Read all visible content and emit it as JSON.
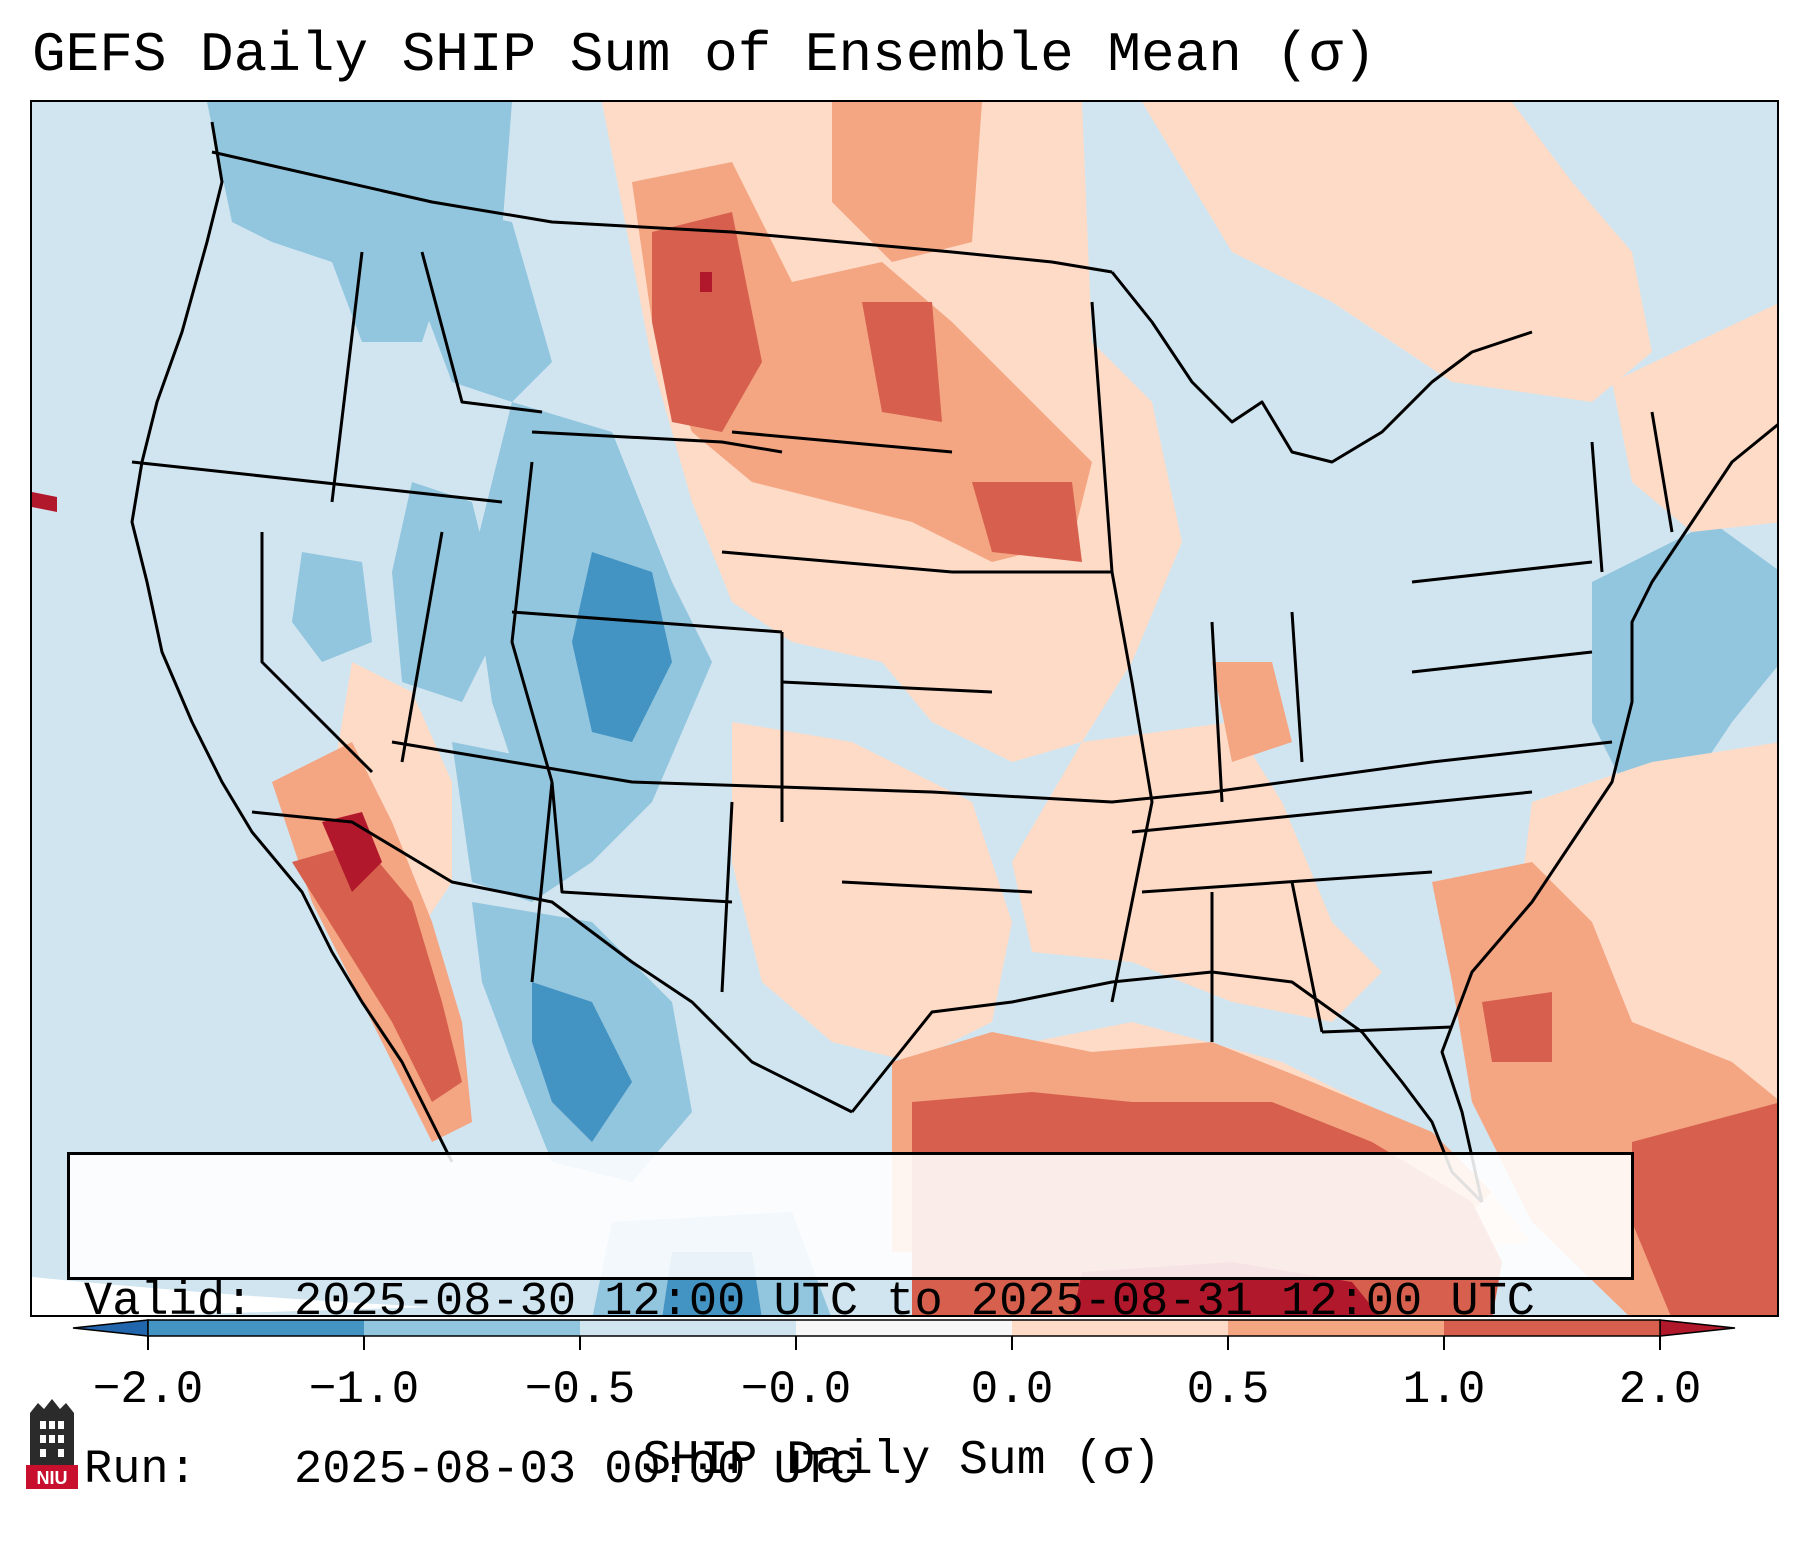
{
  "title": "GEFS Daily SHIP Sum of Ensemble Mean (σ)",
  "info": {
    "valid_label": "Valid:",
    "valid_value": "2025-08-30 12:00 UTC to 2025-08-31 12:00 UTC",
    "run_label": "Run:",
    "run_value": "2025-08-03 00:00 UTC"
  },
  "colorbar": {
    "label": "SHIP Daily Sum (σ)",
    "ticks": [
      "−2.0",
      "−1.0",
      "−0.5",
      "−0.0",
      "0.0",
      "0.5",
      "1.0",
      "2.0"
    ],
    "colors": [
      "#4393c3",
      "#92c5de",
      "#d1e5f0",
      "#f7f7f7",
      "#fddbc7",
      "#f4a582",
      "#d6604d"
    ],
    "under_color": "#2166ac",
    "over_color": "#b2182b",
    "extend": "both"
  },
  "logo": {
    "text": "NIU"
  },
  "map": {
    "region": "Contiguous United States",
    "land_background": "#d1e5f0",
    "outside_color": "#ffffff"
  }
}
